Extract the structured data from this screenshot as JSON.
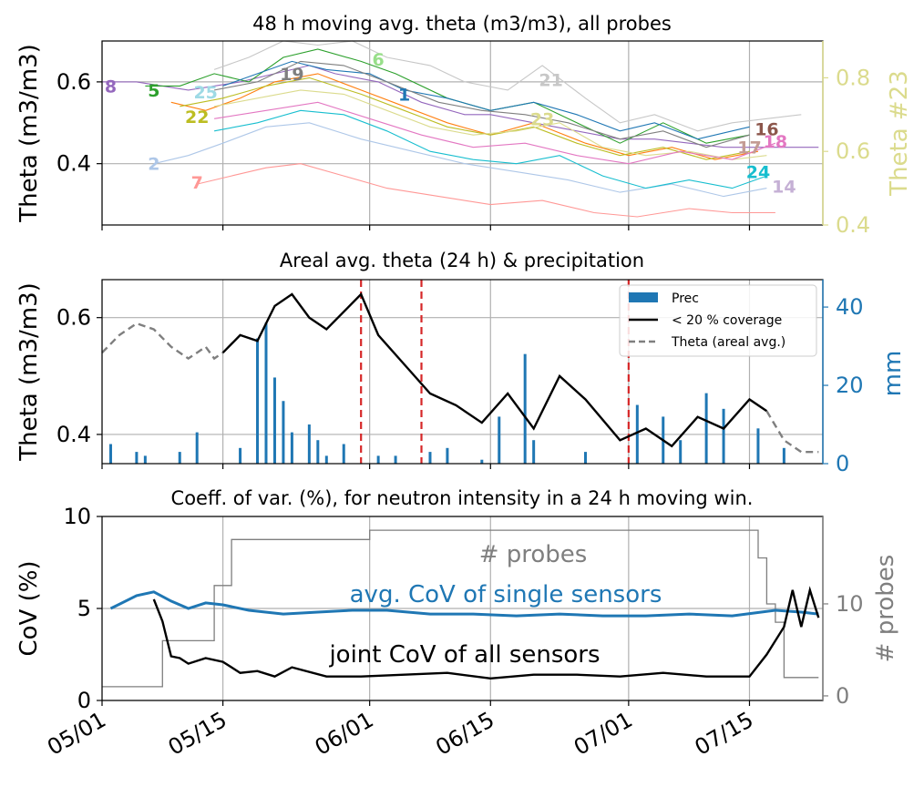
{
  "x_dates": [
    "05/01",
    "05/15",
    "06/01",
    "06/15",
    "07/01",
    "07/15"
  ],
  "chart_data": [
    {
      "type": "line",
      "title": "48 h moving avg. theta (m3/m3), all probes",
      "ylabel": "Theta (m3/m3)",
      "y2label": "Theta #23",
      "ylim": [
        0.25,
        0.7
      ],
      "yticks": [
        "0.4",
        "0.6"
      ],
      "y2lim": [
        0.4,
        0.9
      ],
      "y2ticks": [
        "0.4",
        "0.6",
        "0.8"
      ],
      "grid": true,
      "probe_labels": [
        {
          "name": "8",
          "color": "#9467bd",
          "x": "05/02",
          "y": 0.59
        },
        {
          "name": "5",
          "color": "#2ca02c",
          "x": "05/07",
          "y": 0.58
        },
        {
          "name": "25",
          "color": "#9edae5",
          "x": "05/13",
          "y": 0.575
        },
        {
          "name": "22",
          "color": "#bcbd22",
          "x": "05/12",
          "y": 0.515
        },
        {
          "name": "2",
          "color": "#aec7e8",
          "x": "05/07",
          "y": 0.4
        },
        {
          "name": "7",
          "color": "#ff9896",
          "x": "05/12",
          "y": 0.355
        },
        {
          "name": "19",
          "color": "#7f7f7f",
          "x": "05/23",
          "y": 0.62
        },
        {
          "name": "6",
          "color": "#98df8a",
          "x": "06/02",
          "y": 0.655
        },
        {
          "name": "21",
          "color": "#c7c7c7",
          "x": "06/22",
          "y": 0.605
        },
        {
          "name": "1",
          "color": "#1f77b4",
          "x": "06/05",
          "y": 0.57
        },
        {
          "name": "23",
          "color": "#dbdb8d",
          "x": "06/21",
          "y": 0.51
        },
        {
          "name": "16",
          "color": "#8c564b",
          "x": "07/17",
          "y": 0.485
        },
        {
          "name": "18",
          "color": "#e377c2",
          "x": "07/18",
          "y": 0.455
        },
        {
          "name": "17",
          "color": "#c49c94",
          "x": "07/15",
          "y": 0.44
        },
        {
          "name": "24",
          "color": "#17becf",
          "x": "07/16",
          "y": 0.38
        },
        {
          "name": "14",
          "color": "#c5b0d5",
          "x": "07/19",
          "y": 0.345
        }
      ],
      "series": [
        {
          "color": "#9467bd",
          "x": [
            "05/01",
            "05/05",
            "05/08",
            "05/11",
            "05/14",
            "05/17",
            "05/21",
            "05/25",
            "05/28",
            "06/02",
            "06/07",
            "06/12",
            "06/15",
            "06/20",
            "06/25",
            "06/30",
            "07/04",
            "07/08",
            "07/12",
            "07/16",
            "07/19",
            "07/23"
          ],
          "values": [
            0.6,
            0.6,
            0.59,
            0.58,
            0.59,
            0.6,
            0.62,
            0.64,
            0.62,
            0.6,
            0.55,
            0.52,
            0.52,
            0.5,
            0.48,
            0.46,
            0.46,
            0.45,
            0.44,
            0.44,
            0.44,
            0.44
          ]
        },
        {
          "color": "#2ca02c",
          "x": [
            "05/06",
            "05/10",
            "05/14",
            "05/18",
            "05/22",
            "05/26",
            "05/31",
            "06/04",
            "06/10",
            "06/15",
            "06/20",
            "06/25",
            "06/30",
            "07/05",
            "07/10",
            "07/15"
          ],
          "values": [
            0.59,
            0.59,
            0.62,
            0.6,
            0.66,
            0.68,
            0.65,
            0.62,
            0.56,
            0.53,
            0.55,
            0.5,
            0.45,
            0.5,
            0.45,
            0.47
          ]
        },
        {
          "color": "#1f77b4",
          "x": [
            "05/15",
            "05/19",
            "05/23",
            "05/27",
            "06/01",
            "06/05",
            "06/10",
            "06/15",
            "06/20",
            "06/25",
            "06/30",
            "07/04",
            "07/09",
            "07/15"
          ],
          "values": [
            0.59,
            0.62,
            0.65,
            0.63,
            0.62,
            0.58,
            0.56,
            0.53,
            0.55,
            0.52,
            0.48,
            0.5,
            0.46,
            0.49
          ]
        },
        {
          "color": "#c7c7c7",
          "x": [
            "05/14",
            "05/18",
            "05/22",
            "05/26",
            "05/30",
            "06/03",
            "06/08",
            "06/12",
            "06/17",
            "06/21",
            "06/26",
            "06/30",
            "07/04",
            "07/09",
            "07/13",
            "07/17",
            "07/21"
          ],
          "values": [
            0.63,
            0.66,
            0.7,
            0.69,
            0.7,
            0.66,
            0.64,
            0.6,
            0.58,
            0.64,
            0.56,
            0.5,
            0.52,
            0.48,
            0.5,
            0.51,
            0.52
          ]
        },
        {
          "color": "#7f7f7f",
          "x": [
            "05/14",
            "05/19",
            "05/24",
            "05/29",
            "06/03",
            "06/09",
            "06/14",
            "06/19",
            "06/24",
            "06/30",
            "07/05",
            "07/10",
            "07/15"
          ],
          "values": [
            0.58,
            0.6,
            0.65,
            0.64,
            0.6,
            0.55,
            0.53,
            0.52,
            0.5,
            0.46,
            0.48,
            0.44,
            0.47
          ]
        },
        {
          "color": "#ff7f0e",
          "x": [
            "05/09",
            "05/13",
            "05/17",
            "05/21",
            "05/26",
            "05/31",
            "06/05",
            "06/10",
            "06/15",
            "06/20",
            "06/26",
            "07/01",
            "07/06",
            "07/11",
            "07/16"
          ],
          "values": [
            0.55,
            0.53,
            0.56,
            0.6,
            0.62,
            0.58,
            0.54,
            0.5,
            0.47,
            0.5,
            0.45,
            0.42,
            0.44,
            0.41,
            0.43
          ]
        },
        {
          "color": "#bcbd22",
          "x": [
            "05/10",
            "05/15",
            "05/20",
            "05/25",
            "05/31",
            "06/05",
            "06/10",
            "06/15",
            "06/20",
            "06/25",
            "06/30",
            "07/05",
            "07/10",
            "07/15"
          ],
          "values": [
            0.54,
            0.56,
            0.59,
            0.61,
            0.57,
            0.53,
            0.49,
            0.47,
            0.49,
            0.45,
            0.42,
            0.44,
            0.41,
            0.43
          ]
        },
        {
          "color": "#dbdb8d",
          "x": [
            "05/14",
            "05/19",
            "05/24",
            "05/29",
            "06/03",
            "06/08",
            "06/13",
            "06/18",
            "06/23",
            "06/28",
            "07/03",
            "07/08",
            "07/13",
            "07/17"
          ],
          "values": [
            0.54,
            0.56,
            0.58,
            0.57,
            0.53,
            0.49,
            0.47,
            0.48,
            0.5,
            0.44,
            0.42,
            0.43,
            0.41,
            0.42
          ]
        },
        {
          "color": "#aec7e8",
          "x": [
            "05/07",
            "05/11",
            "05/15",
            "05/20",
            "05/25",
            "05/31",
            "06/06",
            "06/12",
            "06/18",
            "06/24",
            "06/30",
            "07/06",
            "07/12",
            "07/17"
          ],
          "values": [
            0.4,
            0.42,
            0.45,
            0.49,
            0.5,
            0.46,
            0.43,
            0.4,
            0.38,
            0.36,
            0.33,
            0.35,
            0.32,
            0.34
          ]
        },
        {
          "color": "#ff9896",
          "x": [
            "05/12",
            "05/16",
            "05/20",
            "05/24",
            "05/29",
            "06/03",
            "06/09",
            "06/15",
            "06/21",
            "06/27",
            "07/02",
            "07/08",
            "07/13",
            "07/18"
          ],
          "values": [
            0.35,
            0.37,
            0.39,
            0.4,
            0.37,
            0.34,
            0.32,
            0.3,
            0.31,
            0.28,
            0.27,
            0.29,
            0.28,
            0.28
          ]
        },
        {
          "color": "#17becf",
          "x": [
            "05/14",
            "05/19",
            "05/24",
            "05/29",
            "06/03",
            "06/08",
            "06/13",
            "06/18",
            "06/23",
            "06/28",
            "07/03",
            "07/08",
            "07/13",
            "07/17"
          ],
          "values": [
            0.48,
            0.5,
            0.53,
            0.52,
            0.48,
            0.43,
            0.41,
            0.4,
            0.42,
            0.37,
            0.34,
            0.36,
            0.34,
            0.37
          ]
        },
        {
          "color": "#e377c2",
          "x": [
            "05/14",
            "05/20",
            "05/26",
            "06/01",
            "06/07",
            "06/13",
            "06/19",
            "06/25",
            "07/01",
            "07/07",
            "07/13",
            "07/18"
          ],
          "values": [
            0.51,
            0.53,
            0.55,
            0.51,
            0.47,
            0.44,
            0.45,
            0.42,
            0.4,
            0.43,
            0.41,
            0.45
          ]
        }
      ]
    },
    {
      "type": "line",
      "title": "Areal avg. theta (24 h) & precipitation",
      "ylabel": "Theta (m3/m3)",
      "y2label": "mm",
      "ylim": [
        0.35,
        0.665
      ],
      "yticks": [
        "0.4",
        "0.6"
      ],
      "y2lim": [
        0,
        47
      ],
      "y2ticks": [
        "0",
        "20",
        "40"
      ],
      "grid": true,
      "legend": {
        "position": "top-right",
        "entries": [
          {
            "label": "Prec",
            "kind": "bar",
            "color": "#1f77b4"
          },
          {
            "label": "< 20 % coverage",
            "kind": "solid",
            "color": "#000000"
          },
          {
            "label": "Theta (areal avg.)",
            "kind": "dashed",
            "color": "#7f7f7f"
          }
        ]
      },
      "theta_dashed": {
        "x": [
          "05/01",
          "05/03",
          "05/05",
          "05/07",
          "05/09",
          "05/11",
          "05/12",
          "05/13",
          "05/14",
          "05/15"
        ],
        "values": [
          0.54,
          0.57,
          0.59,
          0.58,
          0.55,
          0.53,
          0.54,
          0.55,
          0.53,
          0.54
        ]
      },
      "theta_solid": {
        "x": [
          "05/15",
          "05/17",
          "05/19",
          "05/21",
          "05/23",
          "05/25",
          "05/27",
          "05/29",
          "05/31",
          "06/02",
          "06/05",
          "06/08",
          "06/11",
          "06/14",
          "06/17",
          "06/20",
          "06/23",
          "06/26",
          "06/30",
          "07/03",
          "07/06",
          "07/09",
          "07/12",
          "07/15",
          "07/17"
        ],
        "values": [
          0.54,
          0.57,
          0.56,
          0.62,
          0.64,
          0.6,
          0.58,
          0.61,
          0.64,
          0.57,
          0.52,
          0.47,
          0.45,
          0.42,
          0.47,
          0.41,
          0.5,
          0.46,
          0.39,
          0.41,
          0.38,
          0.43,
          0.41,
          0.46,
          0.44
        ]
      },
      "theta_dashed_end": {
        "x": [
          "07/17",
          "07/19",
          "07/21",
          "07/23"
        ],
        "values": [
          0.44,
          0.39,
          0.37,
          0.37
        ]
      },
      "prec": {
        "x": [
          "05/02",
          "05/05",
          "05/06",
          "05/10",
          "05/12",
          "05/17",
          "05/19",
          "05/20",
          "05/21",
          "05/22",
          "05/23",
          "05/25",
          "05/26",
          "05/27",
          "05/29",
          "06/02",
          "06/04",
          "06/08",
          "06/10",
          "06/14",
          "06/16",
          "06/19",
          "06/20",
          "06/26",
          "07/02",
          "07/05",
          "07/07",
          "07/10",
          "07/12",
          "07/16",
          "07/19"
        ],
        "values": [
          5,
          3,
          2,
          3,
          8,
          4,
          32,
          36,
          22,
          16,
          8,
          10,
          6,
          2,
          5,
          2,
          2,
          3,
          4,
          1,
          12,
          28,
          6,
          3,
          15,
          12,
          6,
          18,
          14,
          9,
          4
        ]
      },
      "event_lines": [
        "05/31",
        "06/07",
        "07/01"
      ]
    },
    {
      "type": "line",
      "title": "Coeff. of var. (%), for neutron intensity in a 24 h moving win.",
      "ylabel": "CoV (%)",
      "y2label": "# probes",
      "ylim": [
        0,
        10
      ],
      "yticks": [
        "0",
        "5",
        "10"
      ],
      "y2lim": [
        -0.5,
        19.5
      ],
      "y2ticks": [
        "0",
        "10"
      ],
      "grid": true,
      "annotations": [
        {
          "text": "# probes",
          "color": "#7f7f7f"
        },
        {
          "text": "avg. CoV of single sensors",
          "color": "#1f77b4"
        },
        {
          "text": "joint CoV of all sensors",
          "color": "#000000"
        }
      ],
      "series": [
        {
          "name": "avg. CoV of single sensors",
          "color": "#1f77b4",
          "x": [
            "05/02",
            "05/05",
            "05/07",
            "05/09",
            "05/11",
            "05/13",
            "05/15",
            "05/18",
            "05/22",
            "05/26",
            "05/30",
            "06/03",
            "06/08",
            "06/13",
            "06/18",
            "06/23",
            "06/28",
            "07/03",
            "07/08",
            "07/13",
            "07/18",
            "07/21",
            "07/23"
          ],
          "values": [
            5.0,
            5.7,
            5.9,
            5.4,
            5.0,
            5.3,
            5.2,
            4.9,
            4.7,
            4.8,
            4.9,
            4.9,
            4.7,
            4.7,
            4.6,
            4.7,
            4.6,
            4.6,
            4.7,
            4.6,
            4.9,
            4.8,
            4.7
          ]
        },
        {
          "name": "joint CoV of all sensors",
          "color": "#000000",
          "x": [
            "05/07",
            "05/08",
            "05/09",
            "05/10",
            "05/11",
            "05/13",
            "05/15",
            "05/17",
            "05/19",
            "05/21",
            "05/23",
            "05/27",
            "05/31",
            "06/05",
            "06/10",
            "06/15",
            "06/20",
            "06/25",
            "06/30",
            "07/05",
            "07/10",
            "07/15",
            "07/17",
            "07/19",
            "07/20",
            "07/21",
            "07/22",
            "07/23"
          ],
          "values": [
            5.5,
            4.3,
            2.4,
            2.3,
            2.0,
            2.3,
            2.1,
            1.5,
            1.6,
            1.3,
            1.8,
            1.3,
            1.3,
            1.4,
            1.5,
            1.2,
            1.4,
            1.4,
            1.3,
            1.5,
            1.3,
            1.3,
            2.5,
            4.0,
            6.0,
            4.0,
            6.0,
            4.5
          ]
        },
        {
          "name": "# probes",
          "color": "#7f7f7f",
          "x": [
            "05/01",
            "05/07",
            "05/08",
            "05/13",
            "05/14",
            "05/15",
            "05/16",
            "05/31",
            "06/01",
            "07/15",
            "07/16",
            "07/17",
            "07/18",
            "07/19",
            "07/23"
          ],
          "values": [
            1,
            1,
            6,
            6,
            12,
            12,
            17,
            17,
            18,
            18,
            15,
            10,
            8,
            2,
            2
          ]
        }
      ]
    }
  ]
}
